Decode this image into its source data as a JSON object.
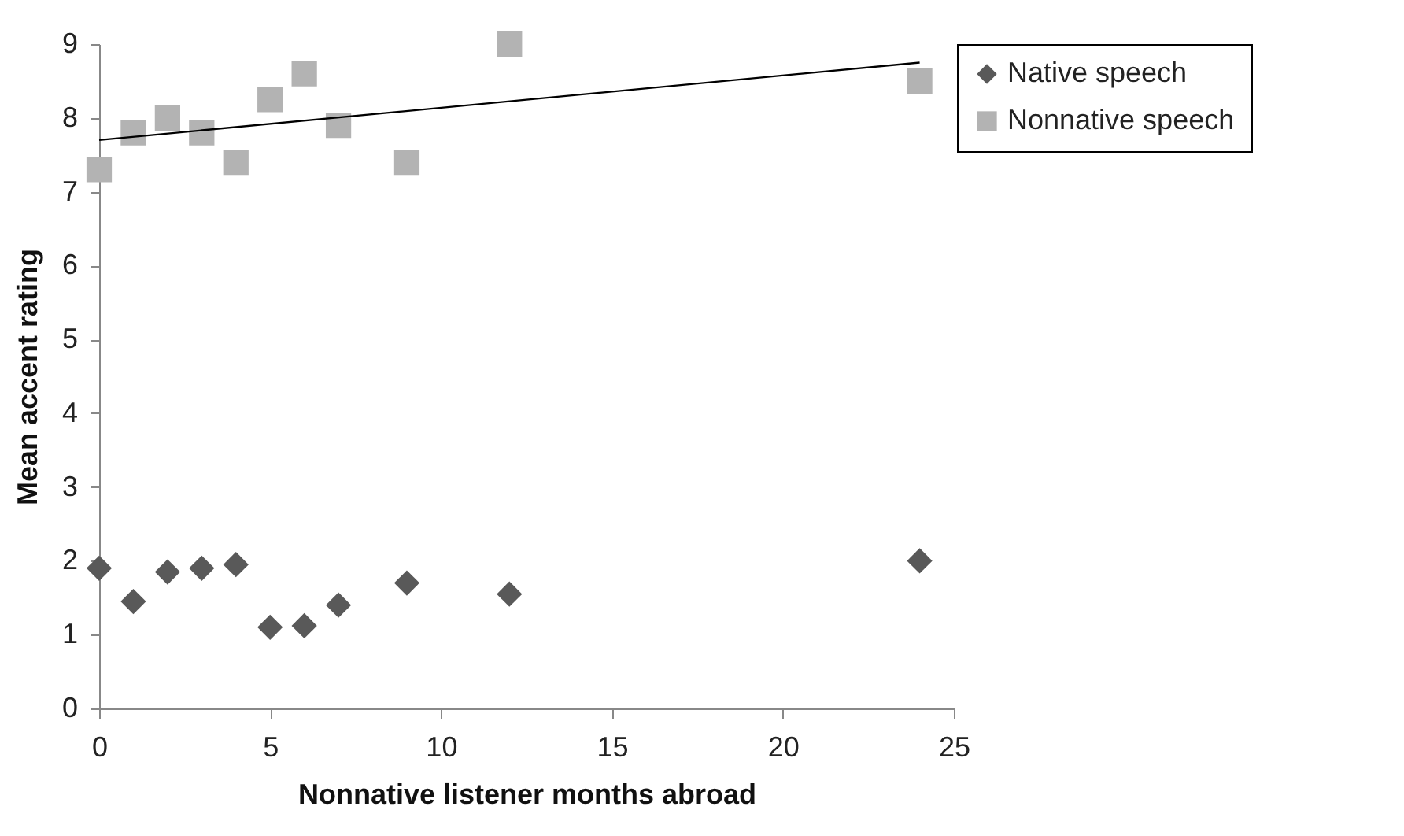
{
  "chart_data": {
    "type": "scatter",
    "xlabel": "Nonnative listener months abroad",
    "ylabel": "Mean accent rating",
    "x": [
      0,
      1,
      2,
      3,
      4,
      5,
      6,
      7,
      9,
      12,
      24
    ],
    "series": [
      {
        "name": "Native speech",
        "color": "#595959",
        "marker": "diamond",
        "values": [
          1.9,
          1.45,
          1.85,
          1.9,
          1.95,
          1.1,
          1.12,
          1.4,
          1.7,
          1.55,
          2.0
        ]
      },
      {
        "name": "Nonnative speech",
        "color": "#b3b3b3",
        "marker": "square",
        "values": [
          7.3,
          7.8,
          8.0,
          7.8,
          7.4,
          8.25,
          8.6,
          7.9,
          7.4,
          9.0,
          8.5
        ]
      },
      {
        "type": "line",
        "color": "#000000",
        "x": [
          0,
          24
        ],
        "values": [
          7.7,
          8.75
        ]
      }
    ],
    "xlim": [
      0,
      25
    ],
    "xticks": [
      0,
      5,
      10,
      15,
      20,
      25
    ],
    "ylim": [
      0,
      9
    ],
    "yticks": [
      0,
      1,
      2,
      3,
      4,
      5,
      6,
      7,
      8,
      9
    ],
    "grid": false,
    "legend": "right"
  }
}
